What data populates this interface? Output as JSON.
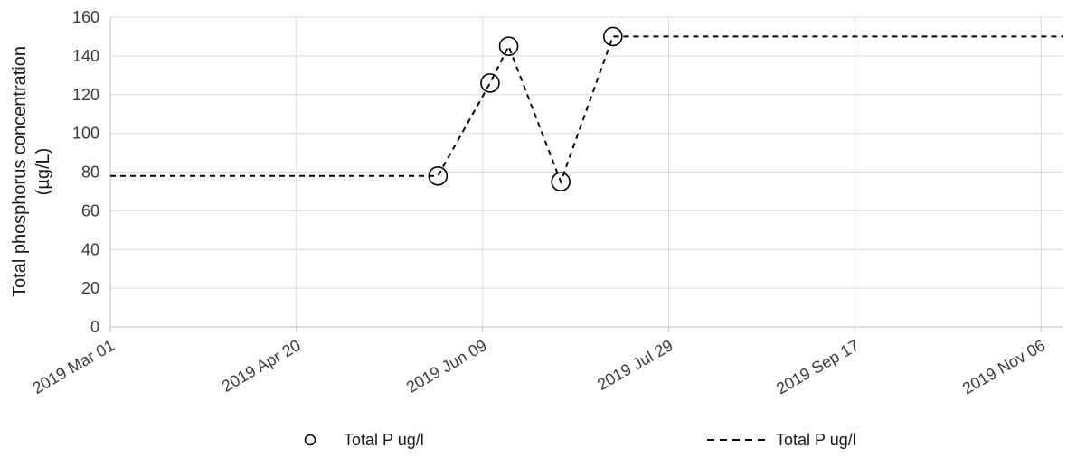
{
  "chart_data": {
    "type": "line",
    "title": "",
    "ylabel_lines": [
      "Total phosphorus concentration",
      "(µg/L)"
    ],
    "xlabel": "",
    "ylim": [
      0,
      160
    ],
    "yticks": [
      0,
      20,
      40,
      60,
      80,
      100,
      120,
      140,
      160
    ],
    "xlim": [
      "2019-03-01",
      "2019-11-12"
    ],
    "xticks": [
      {
        "date": "2019-03-01",
        "label": "2019 Mar 01"
      },
      {
        "date": "2019-04-20",
        "label": "2019 Apr 20"
      },
      {
        "date": "2019-06-09",
        "label": "2019 Jun 09"
      },
      {
        "date": "2019-07-29",
        "label": "2019 Jul 29"
      },
      {
        "date": "2019-09-17",
        "label": "2019 Sep 17"
      },
      {
        "date": "2019-11-06",
        "label": "2019 Nov 06"
      }
    ],
    "grid": true,
    "legend_position": "bottom",
    "series": [
      {
        "name": "Total P  ug/l",
        "style": "markers",
        "marker": "open-circle",
        "color": "#000000",
        "points": [
          {
            "x": "2019-05-28",
            "y": 78
          },
          {
            "x": "2019-06-11",
            "y": 126
          },
          {
            "x": "2019-06-16",
            "y": 145
          },
          {
            "x": "2019-06-30",
            "y": 75
          },
          {
            "x": "2019-07-14",
            "y": 150
          }
        ]
      },
      {
        "name": "Total P  ug/l",
        "style": "dashed-line",
        "color": "#000000",
        "points": [
          {
            "x": "2019-03-01",
            "y": 78
          },
          {
            "x": "2019-05-28",
            "y": 78
          },
          {
            "x": "2019-06-11",
            "y": 126
          },
          {
            "x": "2019-06-16",
            "y": 145
          },
          {
            "x": "2019-06-30",
            "y": 75
          },
          {
            "x": "2019-07-14",
            "y": 150
          },
          {
            "x": "2019-11-12",
            "y": 150
          }
        ]
      }
    ]
  }
}
